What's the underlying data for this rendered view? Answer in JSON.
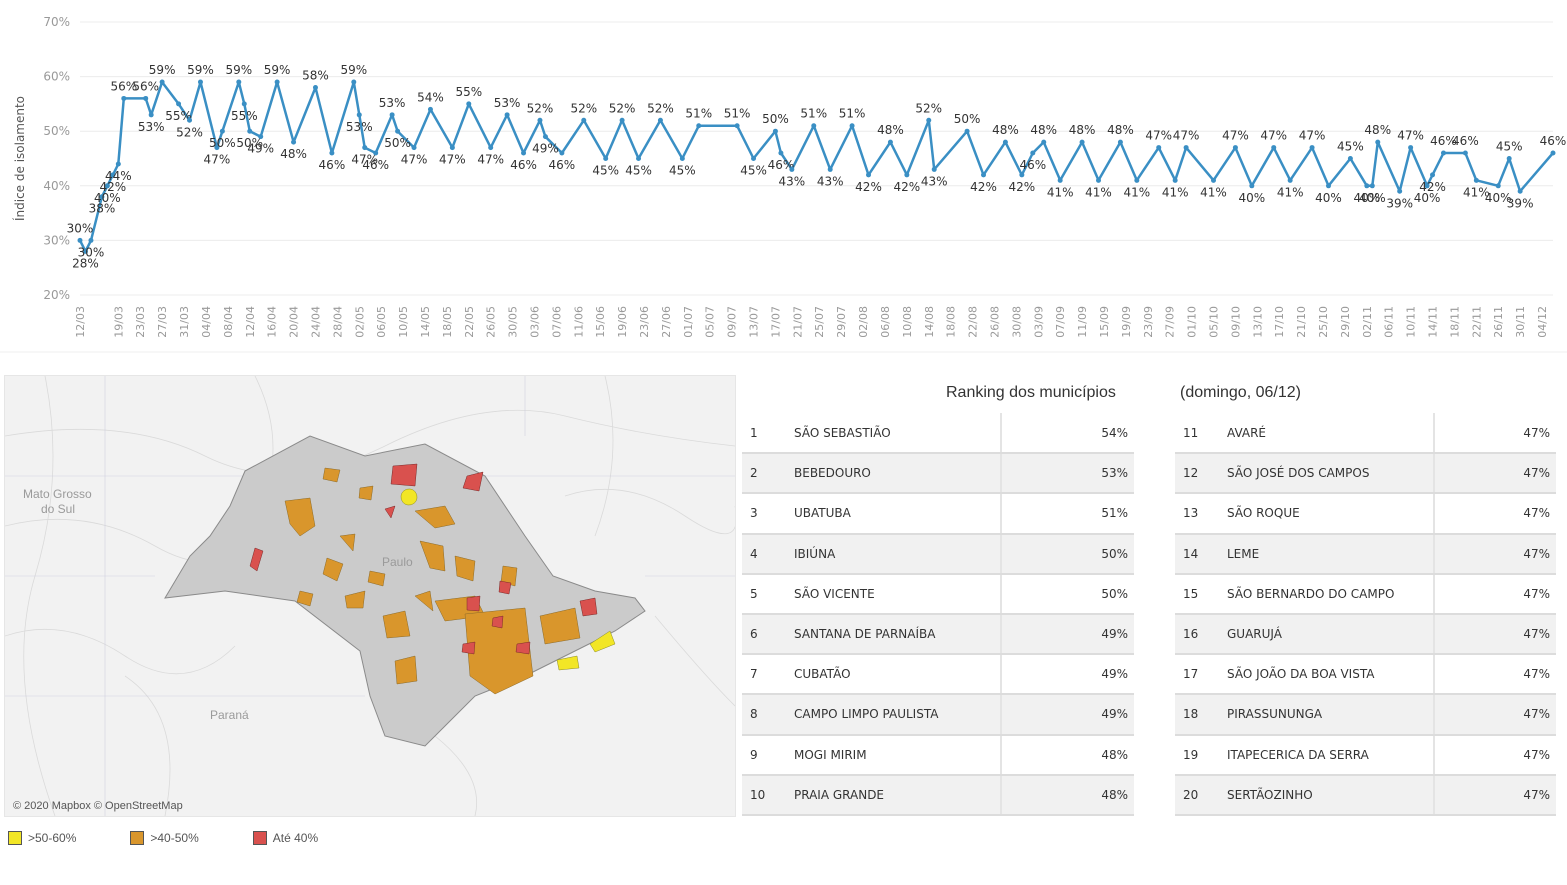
{
  "chart_data": {
    "type": "line",
    "ylabel": "Índice de isolamento",
    "yticks": [
      "20%",
      "30%",
      "40%",
      "50%",
      "60%",
      "70%"
    ],
    "ylim": [
      20,
      70
    ],
    "grid": true,
    "color": "#3a8fc4",
    "x_tick_labels": [
      "12/03",
      "19/03",
      "23/03",
      "27/03",
      "31/03",
      "04/04",
      "08/04",
      "12/04",
      "16/04",
      "20/04",
      "24/04",
      "28/04",
      "02/05",
      "06/05",
      "10/05",
      "14/05",
      "18/05",
      "22/05",
      "26/05",
      "30/05",
      "03/06",
      "07/06",
      "11/06",
      "15/06",
      "19/06",
      "23/06",
      "27/06",
      "01/07",
      "05/07",
      "09/07",
      "13/07",
      "17/07",
      "21/07",
      "25/07",
      "29/07",
      "02/08",
      "06/08",
      "10/08",
      "14/08",
      "18/08",
      "22/08",
      "26/08",
      "30/08",
      "03/09",
      "07/09",
      "11/09",
      "15/09",
      "19/09",
      "23/09",
      "27/09",
      "01/10",
      "05/10",
      "09/10",
      "13/10",
      "17/10",
      "21/10",
      "25/10",
      "29/10",
      "02/11",
      "06/11",
      "10/11",
      "14/11",
      "18/11",
      "22/11",
      "26/11",
      "30/11",
      "04/12"
    ],
    "labeled_points": [
      {
        "date": "12/03",
        "value": 30
      },
      {
        "date": "13/03",
        "value": 28
      },
      {
        "date": "14/03",
        "value": 30
      },
      {
        "date": "16/03",
        "value": 38
      },
      {
        "date": "17/03",
        "value": 40
      },
      {
        "date": "18/03",
        "value": 42
      },
      {
        "date": "19/03",
        "value": 44
      },
      {
        "date": "20/03",
        "value": 56
      },
      {
        "date": "24/03",
        "value": 56
      },
      {
        "date": "25/03",
        "value": 53
      },
      {
        "date": "27/03",
        "value": 59
      },
      {
        "date": "30/03",
        "value": 55
      },
      {
        "date": "01/04",
        "value": 52
      },
      {
        "date": "03/04",
        "value": 59
      },
      {
        "date": "06/04",
        "value": 47
      },
      {
        "date": "07/04",
        "value": 50
      },
      {
        "date": "10/04",
        "value": 59
      },
      {
        "date": "11/04",
        "value": 55
      },
      {
        "date": "12/04",
        "value": 50
      },
      {
        "date": "14/04",
        "value": 49
      },
      {
        "date": "17/04",
        "value": 59
      },
      {
        "date": "20/04",
        "value": 48
      },
      {
        "date": "24/04",
        "value": 58
      },
      {
        "date": "27/04",
        "value": 46
      },
      {
        "date": "01/05",
        "value": 59
      },
      {
        "date": "02/05",
        "value": 53
      },
      {
        "date": "03/05",
        "value": 47
      },
      {
        "date": "05/05",
        "value": 46
      },
      {
        "date": "08/05",
        "value": 53
      },
      {
        "date": "09/05",
        "value": 50
      },
      {
        "date": "12/05",
        "value": 47
      },
      {
        "date": "15/05",
        "value": 54
      },
      {
        "date": "19/05",
        "value": 47
      },
      {
        "date": "22/05",
        "value": 55
      },
      {
        "date": "26/05",
        "value": 47
      },
      {
        "date": "29/05",
        "value": 53
      },
      {
        "date": "01/06",
        "value": 46
      },
      {
        "date": "04/06",
        "value": 52
      },
      {
        "date": "05/06",
        "value": 49
      },
      {
        "date": "08/06",
        "value": 46
      },
      {
        "date": "12/06",
        "value": 52
      },
      {
        "date": "16/06",
        "value": 45
      },
      {
        "date": "19/06",
        "value": 52
      },
      {
        "date": "22/06",
        "value": 45
      },
      {
        "date": "26/06",
        "value": 52
      },
      {
        "date": "30/06",
        "value": 45
      },
      {
        "date": "03/07",
        "value": 51
      },
      {
        "date": "10/07",
        "value": 51
      },
      {
        "date": "13/07",
        "value": 45
      },
      {
        "date": "17/07",
        "value": 50
      },
      {
        "date": "18/07",
        "value": 46
      },
      {
        "date": "20/07",
        "value": 43
      },
      {
        "date": "24/07",
        "value": 51
      },
      {
        "date": "27/07",
        "value": 43
      },
      {
        "date": "31/07",
        "value": 51
      },
      {
        "date": "03/08",
        "value": 42
      },
      {
        "date": "07/08",
        "value": 48
      },
      {
        "date": "10/08",
        "value": 42
      },
      {
        "date": "14/08",
        "value": 52
      },
      {
        "date": "15/08",
        "value": 43
      },
      {
        "date": "21/08",
        "value": 50
      },
      {
        "date": "24/08",
        "value": 42
      },
      {
        "date": "28/08",
        "value": 48
      },
      {
        "date": "31/08",
        "value": 42
      },
      {
        "date": "02/09",
        "value": 46
      },
      {
        "date": "04/09",
        "value": 48
      },
      {
        "date": "07/09",
        "value": 41
      },
      {
        "date": "11/09",
        "value": 48
      },
      {
        "date": "14/09",
        "value": 41
      },
      {
        "date": "18/09",
        "value": 48
      },
      {
        "date": "21/09",
        "value": 41
      },
      {
        "date": "25/09",
        "value": 47
      },
      {
        "date": "28/09",
        "value": 41
      },
      {
        "date": "30/09",
        "value": 47
      },
      {
        "date": "05/10",
        "value": 41
      },
      {
        "date": "09/10",
        "value": 47
      },
      {
        "date": "12/10",
        "value": 40
      },
      {
        "date": "16/10",
        "value": 47
      },
      {
        "date": "19/10",
        "value": 41
      },
      {
        "date": "23/10",
        "value": 47
      },
      {
        "date": "26/10",
        "value": 40
      },
      {
        "date": "30/10",
        "value": 45
      },
      {
        "date": "02/11",
        "value": 40
      },
      {
        "date": "03/11",
        "value": 40
      },
      {
        "date": "04/11",
        "value": 48
      },
      {
        "date": "08/11",
        "value": 39
      },
      {
        "date": "10/11",
        "value": 47
      },
      {
        "date": "13/11",
        "value": 40
      },
      {
        "date": "14/11",
        "value": 42
      },
      {
        "date": "16/11",
        "value": 46
      },
      {
        "date": "20/11",
        "value": 46
      },
      {
        "date": "22/11",
        "value": 41
      },
      {
        "date": "26/11",
        "value": 40
      },
      {
        "date": "28/11",
        "value": 45
      },
      {
        "date": "30/11",
        "value": 39
      },
      {
        "date": "06/12",
        "value": 46
      }
    ]
  },
  "map": {
    "attribution": "© 2020 Mapbox © OpenStreetMap",
    "labels": [
      "Mato Grosso do Sul",
      "Paulo",
      "Paraná"
    ],
    "legend": [
      {
        "label": ">50-60%",
        "color": "#f2e626"
      },
      {
        "label": ">40-50%",
        "color": "#d9962c"
      },
      {
        "label": "Até 40%",
        "color": "#d9514e"
      }
    ]
  },
  "ranking": {
    "title": "Ranking dos municípios",
    "date": "(domingo, 06/12)",
    "left": [
      {
        "pos": "1",
        "name": "SÃO SEBASTIÃO",
        "value": "54%"
      },
      {
        "pos": "2",
        "name": "BEBEDOURO",
        "value": "53%"
      },
      {
        "pos": "3",
        "name": "UBATUBA",
        "value": "51%"
      },
      {
        "pos": "4",
        "name": "IBIÚNA",
        "value": "50%"
      },
      {
        "pos": "5",
        "name": "SÃO VICENTE",
        "value": "50%"
      },
      {
        "pos": "6",
        "name": "SANTANA DE PARNAÍBA",
        "value": "49%"
      },
      {
        "pos": "7",
        "name": "CUBATÃO",
        "value": "49%"
      },
      {
        "pos": "8",
        "name": "CAMPO LIMPO PAULISTA",
        "value": "49%"
      },
      {
        "pos": "9",
        "name": "MOGI MIRIM",
        "value": "48%"
      },
      {
        "pos": "10",
        "name": "PRAIA GRANDE",
        "value": "48%"
      }
    ],
    "right": [
      {
        "pos": "11",
        "name": "AVARÉ",
        "value": "47%"
      },
      {
        "pos": "12",
        "name": "SÃO JOSÉ DOS CAMPOS",
        "value": "47%"
      },
      {
        "pos": "13",
        "name": "SÃO ROQUE",
        "value": "47%"
      },
      {
        "pos": "14",
        "name": "LEME",
        "value": "47%"
      },
      {
        "pos": "15",
        "name": "SÃO BERNARDO DO CAMPO",
        "value": "47%"
      },
      {
        "pos": "16",
        "name": "GUARUJÁ",
        "value": "47%"
      },
      {
        "pos": "17",
        "name": "SÃO JOÃO DA BOA VISTA",
        "value": "47%"
      },
      {
        "pos": "18",
        "name": "PIRASSUNUNGA",
        "value": "47%"
      },
      {
        "pos": "19",
        "name": "ITAPECERICA DA SERRA",
        "value": "47%"
      },
      {
        "pos": "20",
        "name": "SERTÃOZINHO",
        "value": "47%"
      }
    ]
  }
}
